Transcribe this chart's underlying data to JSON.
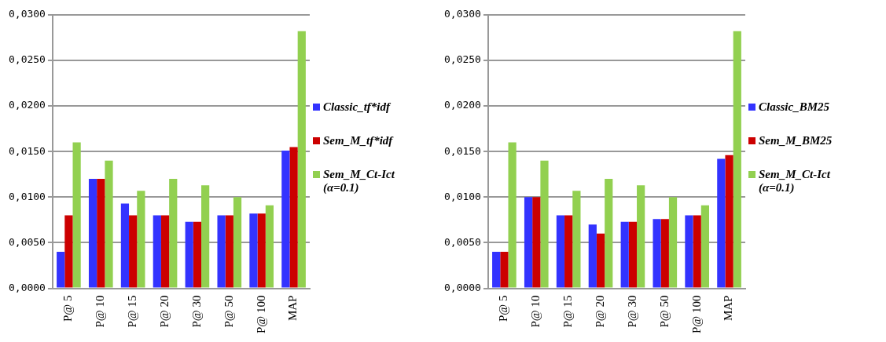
{
  "chart_data": [
    {
      "type": "bar",
      "categories": [
        "P@ 5",
        "P@ 10",
        "P@ 15",
        "P@ 20",
        "P@ 30",
        "P@ 50",
        "P@ 100",
        "MAP"
      ],
      "series": [
        {
          "name": "Classic_tf*idf",
          "color": "#3333ff",
          "values": [
            0.004,
            0.012,
            0.0093,
            0.008,
            0.0073,
            0.008,
            0.0082,
            0.0151
          ]
        },
        {
          "name": "Sem_M_tf*idf",
          "color": "#cc0000",
          "values": [
            0.008,
            0.012,
            0.008,
            0.008,
            0.0073,
            0.008,
            0.0082,
            0.0155
          ]
        },
        {
          "name": "Sem_M_Ct-Ict (α=0.1)",
          "color": "#92d050",
          "values": [
            0.016,
            0.014,
            0.0107,
            0.012,
            0.0113,
            0.01,
            0.0091,
            0.0282
          ]
        }
      ],
      "ylim": [
        0,
        0.03
      ],
      "yticks": [
        {
          "value": 0,
          "label": "0,0000"
        },
        {
          "value": 0.005,
          "label": "0,0050"
        },
        {
          "value": 0.01,
          "label": "0,0100"
        },
        {
          "value": 0.015,
          "label": "0,0150"
        },
        {
          "value": 0.02,
          "label": "0,0200"
        },
        {
          "value": 0.025,
          "label": "0,0250"
        },
        {
          "value": 0.03,
          "label": "0,0300"
        }
      ],
      "grid": "y",
      "legend": "right"
    },
    {
      "type": "bar",
      "categories": [
        "P@ 5",
        "P@ 10",
        "P@ 15",
        "P@ 20",
        "P@ 30",
        "P@ 50",
        "P@ 100",
        "MAP"
      ],
      "series": [
        {
          "name": "Classic_BM25",
          "color": "#3333ff",
          "values": [
            0.004,
            0.01,
            0.008,
            0.007,
            0.0073,
            0.0076,
            0.008,
            0.0142
          ]
        },
        {
          "name": "Sem_M_BM25",
          "color": "#cc0000",
          "values": [
            0.004,
            0.01,
            0.008,
            0.006,
            0.0073,
            0.0076,
            0.008,
            0.0146
          ]
        },
        {
          "name": "Sem_M_Ct-Ict (α=0.1)",
          "color": "#92d050",
          "values": [
            0.016,
            0.014,
            0.0107,
            0.012,
            0.0113,
            0.01,
            0.0091,
            0.0282
          ]
        }
      ],
      "ylim": [
        0,
        0.03
      ],
      "yticks": [
        {
          "value": 0,
          "label": "0,0000"
        },
        {
          "value": 0.005,
          "label": "0,0050"
        },
        {
          "value": 0.01,
          "label": "0,0100"
        },
        {
          "value": 0.015,
          "label": "0,0150"
        },
        {
          "value": 0.02,
          "label": "0,0200"
        },
        {
          "value": 0.025,
          "label": "0,0250"
        },
        {
          "value": 0.03,
          "label": "0,0300"
        }
      ],
      "grid": "y",
      "legend": "right"
    }
  ]
}
